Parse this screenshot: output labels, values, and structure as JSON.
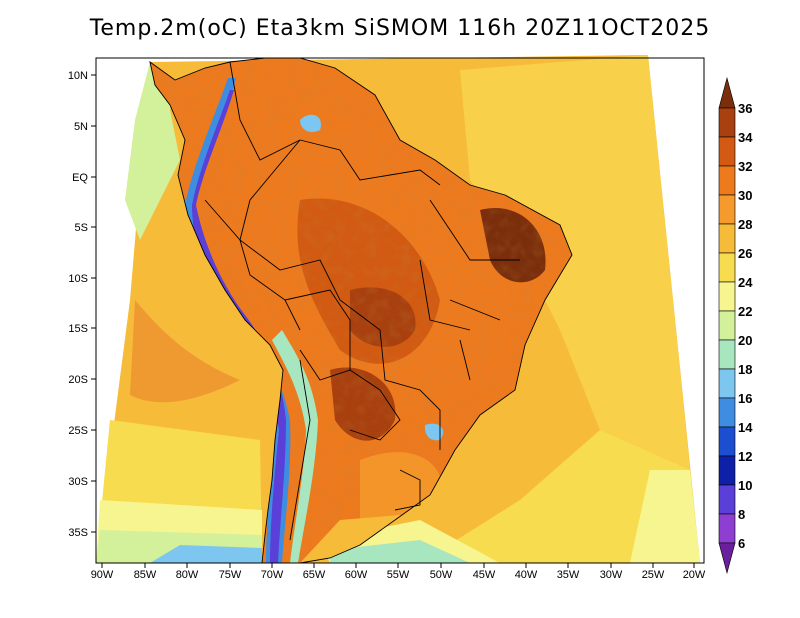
{
  "title": "Temp.2m(oC) Eta3km SiSMOM 116h 20Z11OCT2025",
  "map": {
    "region": "South America",
    "variable": "2 m temperature",
    "units": "oC",
    "lat_labels": [
      "10N",
      "5N",
      "EQ",
      "5S",
      "10S",
      "15S",
      "20S",
      "25S",
      "30S",
      "35S"
    ],
    "lon_labels": [
      "90W",
      "85W",
      "80W",
      "75W",
      "70W",
      "65W",
      "60W",
      "55W",
      "50W",
      "45W",
      "40W",
      "35W",
      "30W",
      "25W",
      "20W"
    ]
  },
  "colorbar": {
    "labels": [
      "36",
      "34",
      "32",
      "30",
      "28",
      "26",
      "24",
      "22",
      "20",
      "18",
      "16",
      "14",
      "12",
      "10",
      "8",
      "6"
    ],
    "colors": [
      "#7a2e0c",
      "#a8400f",
      "#d25a12",
      "#ee7a1e",
      "#f59a2c",
      "#f7bb3a",
      "#f8dc4f",
      "#f7f590",
      "#d3f09a",
      "#a8e6c0",
      "#7cc6f0",
      "#3f8de0",
      "#1c4fcf",
      "#0e1fa8",
      "#5a3fd8",
      "#8e3ed0",
      "#6a1f9c"
    ]
  }
}
